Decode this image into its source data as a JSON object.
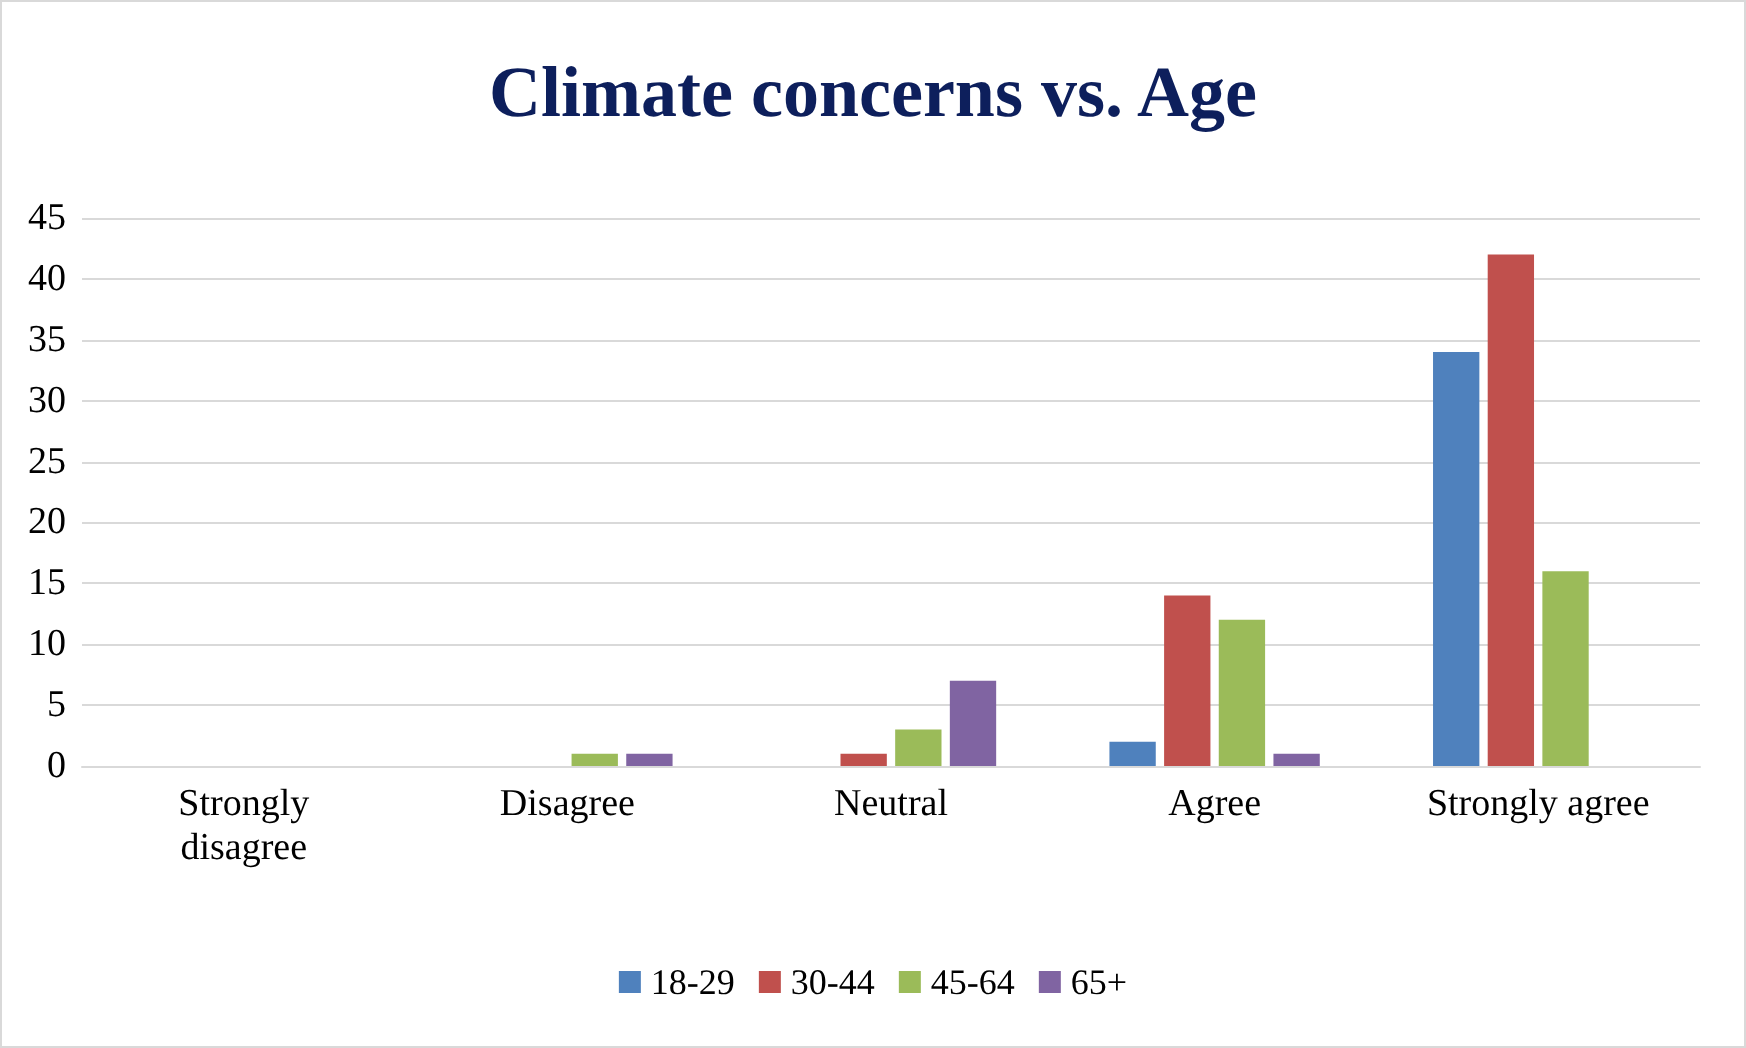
{
  "chart_data": {
    "type": "bar",
    "title": "Climate concerns vs. Age",
    "categories": [
      "Strongly disagree",
      "Disagree",
      "Neutral",
      "Agree",
      "Strongly agree"
    ],
    "series": [
      {
        "name": "18-29",
        "color": "#4f81bd",
        "values": [
          0,
          0,
          0,
          2,
          34
        ]
      },
      {
        "name": "30-44",
        "color": "#c0504d",
        "values": [
          0,
          0,
          1,
          14,
          42
        ]
      },
      {
        "name": "45-64",
        "color": "#9bbb59",
        "values": [
          0,
          1,
          3,
          12,
          16
        ]
      },
      {
        "name": "65+",
        "color": "#8064a2",
        "values": [
          0,
          1,
          7,
          1,
          0
        ]
      }
    ],
    "ylim": [
      0,
      45
    ],
    "yticks": [
      0,
      5,
      10,
      15,
      20,
      25,
      30,
      35,
      40,
      45
    ],
    "grid": "y",
    "legend": "bottom"
  }
}
